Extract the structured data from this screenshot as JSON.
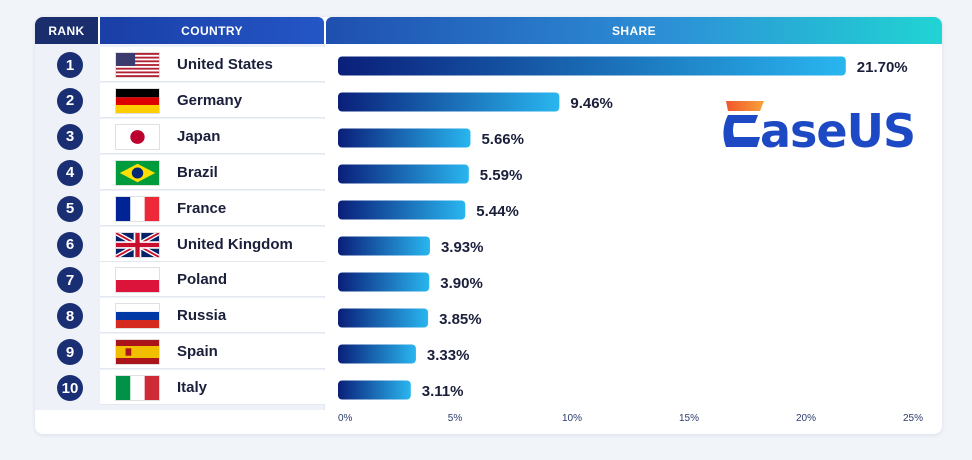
{
  "headers": {
    "rank": "RANK",
    "country": "COUNTRY",
    "share": "SHARE"
  },
  "logo_text": "EaseUS",
  "rows": [
    {
      "rank": "1",
      "country": "United States",
      "flag": "us-flag",
      "share_label": "21.70%"
    },
    {
      "rank": "2",
      "country": "Germany",
      "flag": "de-flag",
      "share_label": "9.46%"
    },
    {
      "rank": "3",
      "country": "Japan",
      "flag": "jp-flag",
      "share_label": "5.66%"
    },
    {
      "rank": "4",
      "country": "Brazil",
      "flag": "br-flag",
      "share_label": "5.59%"
    },
    {
      "rank": "5",
      "country": "France",
      "flag": "fr-flag",
      "share_label": "5.44%"
    },
    {
      "rank": "6",
      "country": "United Kingdom",
      "flag": "gb-flag",
      "share_label": "3.93%"
    },
    {
      "rank": "7",
      "country": "Poland",
      "flag": "pl-flag",
      "share_label": "3.90%"
    },
    {
      "rank": "8",
      "country": "Russia",
      "flag": "ru-flag",
      "share_label": "3.85%"
    },
    {
      "rank": "9",
      "country": "Spain",
      "flag": "es-flag",
      "share_label": "3.33%"
    },
    {
      "rank": "10",
      "country": "Italy",
      "flag": "it-flag",
      "share_label": "3.11%"
    }
  ],
  "chart_data": {
    "type": "bar",
    "orientation": "horizontal",
    "categories": [
      "United States",
      "Germany",
      "Japan",
      "Brazil",
      "France",
      "United Kingdom",
      "Poland",
      "Russia",
      "Spain",
      "Italy"
    ],
    "values": [
      21.7,
      9.46,
      5.66,
      5.59,
      5.44,
      3.93,
      3.9,
      3.85,
      3.33,
      3.11
    ],
    "value_labels": [
      "21.70%",
      "9.46%",
      "5.66%",
      "5.59%",
      "5.44%",
      "3.93%",
      "3.90%",
      "3.85%",
      "3.33%",
      "3.11%"
    ],
    "title": "",
    "xlabel": "",
    "ylabel": "",
    "xlim": [
      0,
      25
    ],
    "xticks": [
      0,
      5,
      10,
      15,
      20,
      25
    ],
    "xtick_labels": [
      "0%",
      "5%",
      "10%",
      "15%",
      "20%",
      "25%"
    ],
    "grid": false,
    "legend": "none",
    "colors": {
      "bar_start": "#0a1f7a",
      "bar_end": "#29b6ef",
      "label": "#1a1f3a",
      "tick": "#2b3d6b"
    }
  }
}
